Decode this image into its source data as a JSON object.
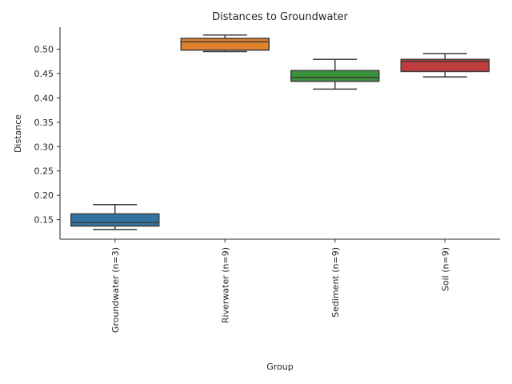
{
  "chart_data": {
    "type": "box",
    "title": "Distances to Groundwater",
    "xlabel": "Group",
    "ylabel": "Distance",
    "ylim": [
      0.11,
      0.545
    ],
    "yticks": [
      0.15,
      0.2,
      0.25,
      0.3,
      0.35,
      0.4,
      0.45,
      0.5
    ],
    "yticklabels": [
      "0.15",
      "0.20",
      "0.25",
      "0.30",
      "0.35",
      "0.40",
      "0.45",
      "0.50"
    ],
    "grid": false,
    "categories": [
      "Groundwater (n=3)",
      "Riverwater (n=9)",
      "Sediment (n=9)",
      "Soil (n=9)"
    ],
    "boxes": [
      {
        "category": "Groundwater (n=3)",
        "color": "#3274a1",
        "whisker_low": 0.13,
        "q1": 0.137,
        "median": 0.144,
        "q3": 0.162,
        "whisker_high": 0.181
      },
      {
        "category": "Riverwater (n=9)",
        "color": "#e1812c",
        "whisker_low": 0.495,
        "q1": 0.498,
        "median": 0.515,
        "q3": 0.522,
        "whisker_high": 0.529
      },
      {
        "category": "Sediment (n=9)",
        "color": "#3a923a",
        "whisker_low": 0.418,
        "q1": 0.434,
        "median": 0.442,
        "q3": 0.456,
        "whisker_high": 0.479
      },
      {
        "category": "Soil (n=9)",
        "color": "#c03d3e",
        "whisker_low": 0.443,
        "q1": 0.454,
        "median": 0.475,
        "q3": 0.479,
        "whisker_high": 0.491
      }
    ]
  }
}
